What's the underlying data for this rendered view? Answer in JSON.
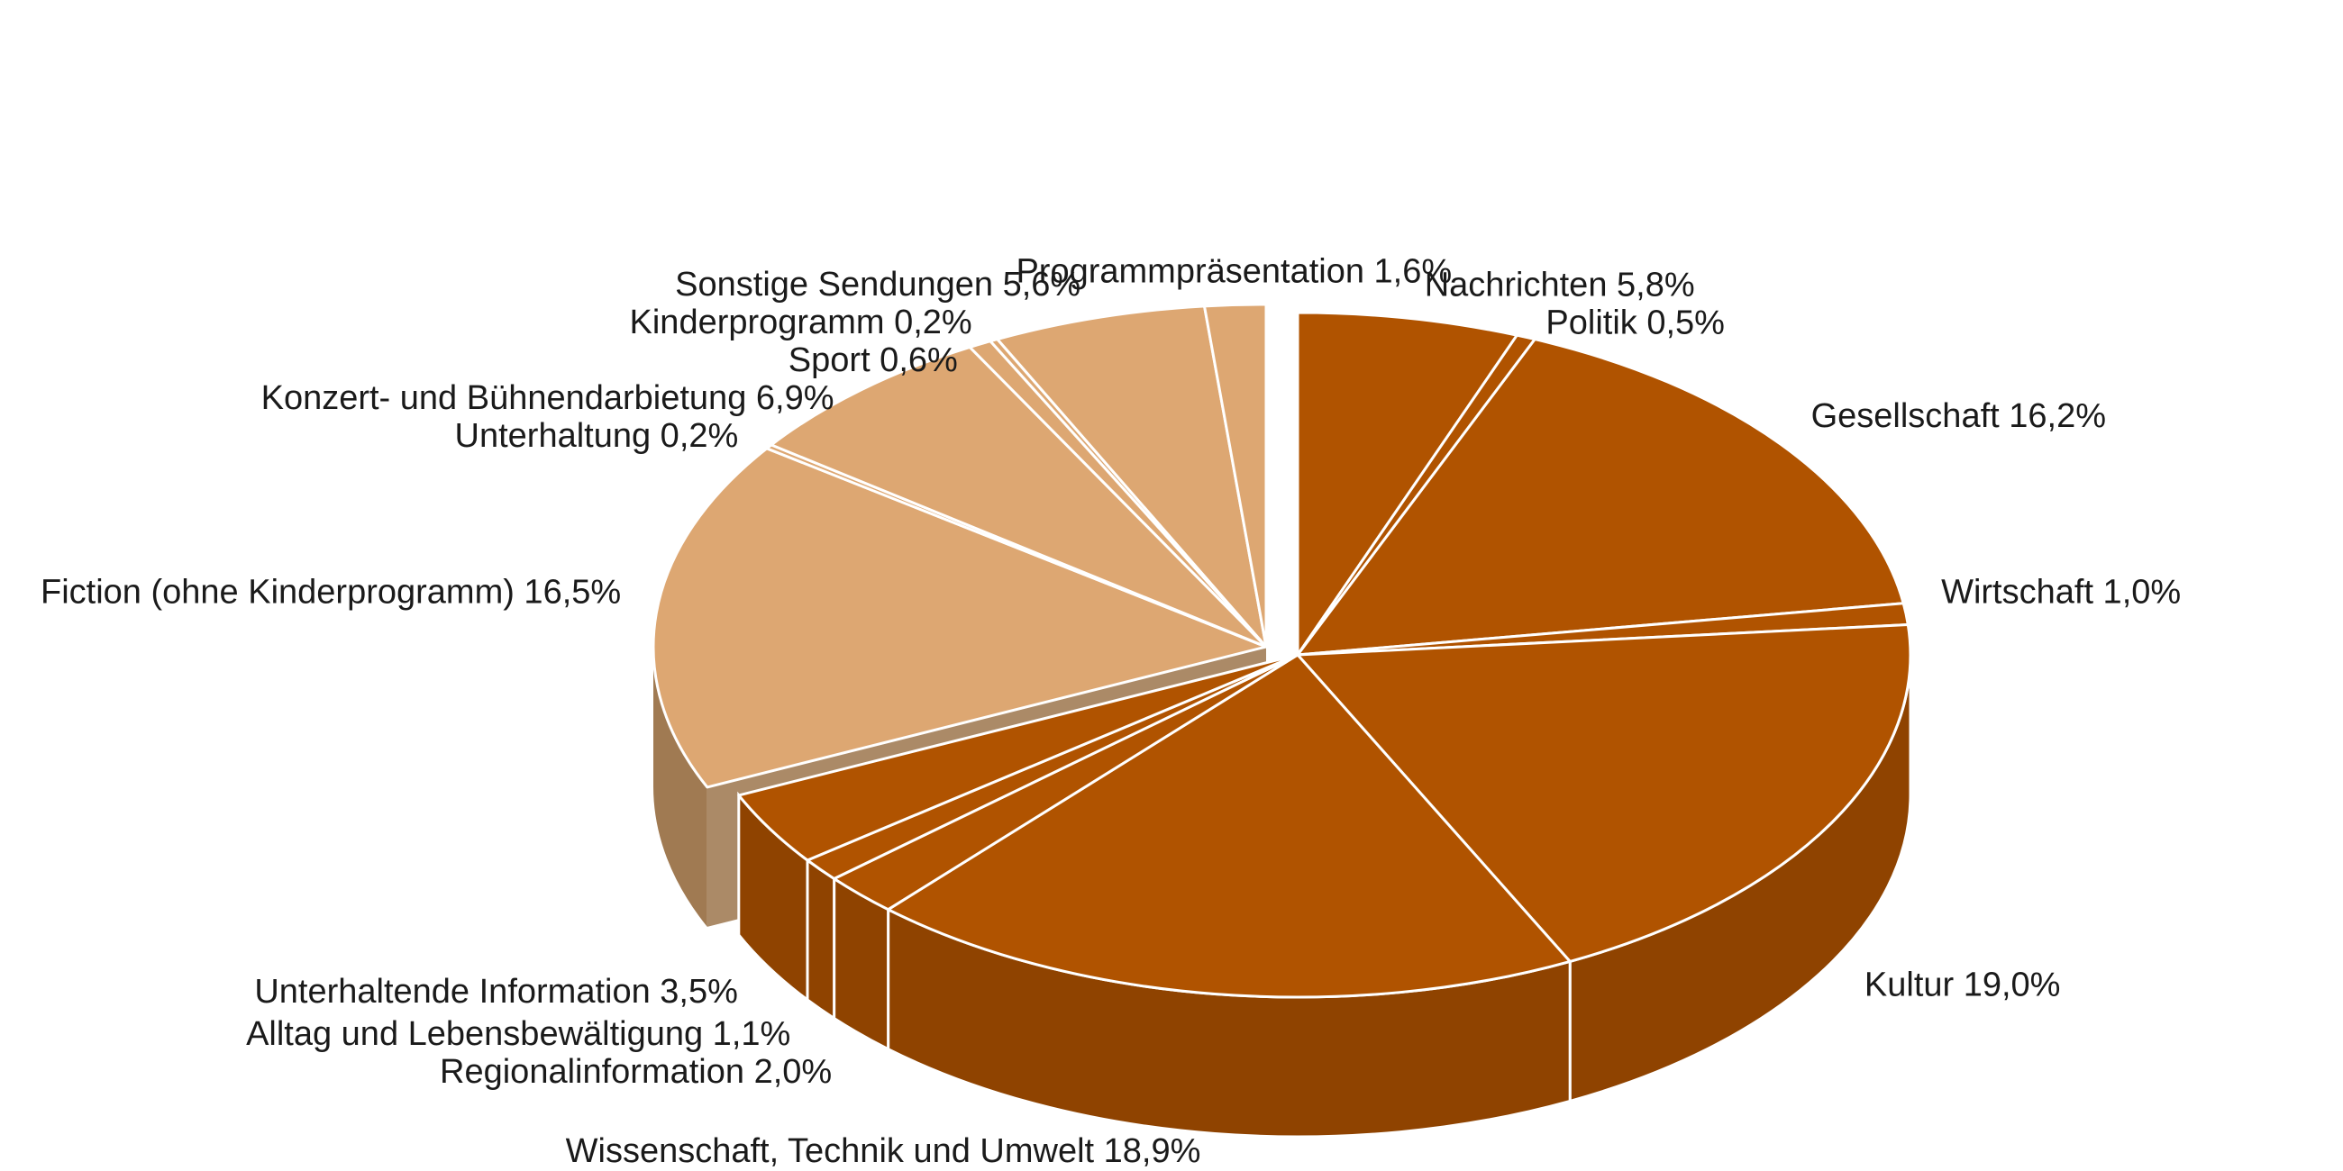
{
  "chart_data": {
    "type": "pie",
    "title": "",
    "legend": "none",
    "colors": {
      "group_a": "#B05300",
      "group_a_side": "#8F4300",
      "group_b": "#DDA772",
      "group_b_side": "#A07A52",
      "separator": "#ffffff"
    },
    "slices": [
      {
        "label": "Nachrichten",
        "value": 5.8,
        "value_text": "5,8%",
        "group": "a"
      },
      {
        "label": "Politik",
        "value": 0.5,
        "value_text": "0,5%",
        "group": "a"
      },
      {
        "label": "Gesellschaft",
        "value": 16.2,
        "value_text": "16,2%",
        "group": "a"
      },
      {
        "label": "Wirtschaft",
        "value": 1.0,
        "value_text": "1,0%",
        "group": "a"
      },
      {
        "label": "Kultur",
        "value": 19.0,
        "value_text": "19,0%",
        "group": "a"
      },
      {
        "label": "Wissenschaft, Technik und Umwelt",
        "value": 18.9,
        "value_text": "18,9%",
        "group": "a"
      },
      {
        "label": "Regionalinformation",
        "value": 2.0,
        "value_text": "2,0%",
        "group": "a"
      },
      {
        "label": "Alltag und Lebensbewältigung",
        "value": 1.1,
        "value_text": "1,1%",
        "group": "a"
      },
      {
        "label": "Unterhaltende Information",
        "value": 3.5,
        "value_text": "3,5%",
        "group": "a"
      },
      {
        "label": "Fiction (ohne Kinderprogramm)",
        "value": 16.5,
        "value_text": "16,5%",
        "group": "b"
      },
      {
        "label": "Unterhaltung",
        "value": 0.2,
        "value_text": "0,2%",
        "group": "b"
      },
      {
        "label": "Konzert- und Bühnendarbietung",
        "value": 6.9,
        "value_text": "6,9%",
        "group": "b"
      },
      {
        "label": "Sport",
        "value": 0.6,
        "value_text": "0,6%",
        "group": "b"
      },
      {
        "label": "Kinderprogramm",
        "value": 0.2,
        "value_text": "0,2%",
        "group": "b"
      },
      {
        "label": "Sonstige Sendungen",
        "value": 5.6,
        "value_text": "5,6%",
        "group": "b"
      },
      {
        "label": "Programmpräsentation",
        "value": 1.6,
        "value_text": "1,6%",
        "group": "b"
      }
    ]
  }
}
